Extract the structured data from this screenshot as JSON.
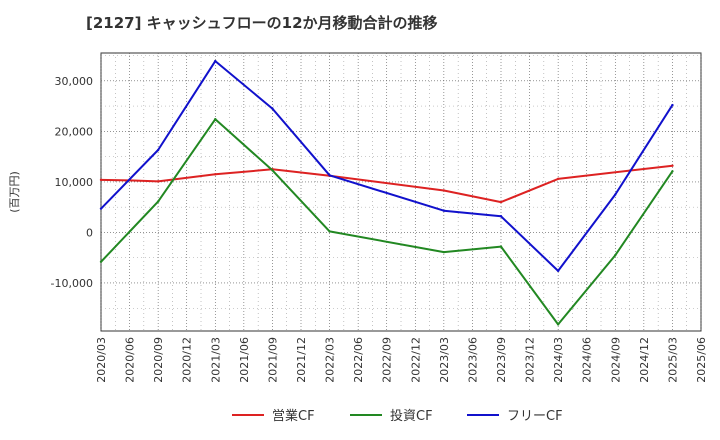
{
  "chart_data": {
    "type": "line",
    "title": "[2127]  キャッシュフローの12か月移動合計の推移",
    "ylabel": "(百万円)",
    "xlabel": "",
    "ylim": [
      -19500,
      35500
    ],
    "y_ticks": [
      30000,
      20000,
      10000,
      0,
      -10000
    ],
    "y_tick_labels": [
      "30,000",
      "20,000",
      "10,000",
      "0",
      "-10,000"
    ],
    "categories": [
      "2020/03",
      "2020/06",
      "2020/09",
      "2020/12",
      "2021/03",
      "2021/06",
      "2021/09",
      "2021/12",
      "2022/03",
      "2022/06",
      "2022/09",
      "2022/12",
      "2023/03",
      "2023/06",
      "2023/09",
      "2023/12",
      "2024/03",
      "2024/06",
      "2024/09",
      "2024/12",
      "2025/03",
      "2025/06"
    ],
    "series": [
      {
        "name": "営業CF",
        "color": "#dd2222",
        "values": [
          10400,
          10300,
          10100,
          null,
          11500,
          null,
          12500,
          null,
          11200,
          null,
          null,
          null,
          8300,
          null,
          6000,
          null,
          10600,
          null,
          null,
          null,
          13200,
          null
        ]
      },
      {
        "name": "投資CF",
        "color": "#228822",
        "values": [
          -5800,
          null,
          6100,
          null,
          22400,
          null,
          12300,
          null,
          200,
          null,
          null,
          null,
          -3900,
          null,
          -2800,
          null,
          -18200,
          null,
          -4500,
          null,
          12100,
          null
        ]
      },
      {
        "name": "フリーCF",
        "color": "#1111cc",
        "values": [
          4700,
          null,
          16300,
          null,
          33900,
          null,
          24500,
          null,
          11300,
          null,
          null,
          null,
          4300,
          null,
          3200,
          null,
          -7600,
          null,
          7500,
          null,
          25200,
          null
        ]
      }
    ],
    "legend_position": "bottom",
    "grid": true
  }
}
